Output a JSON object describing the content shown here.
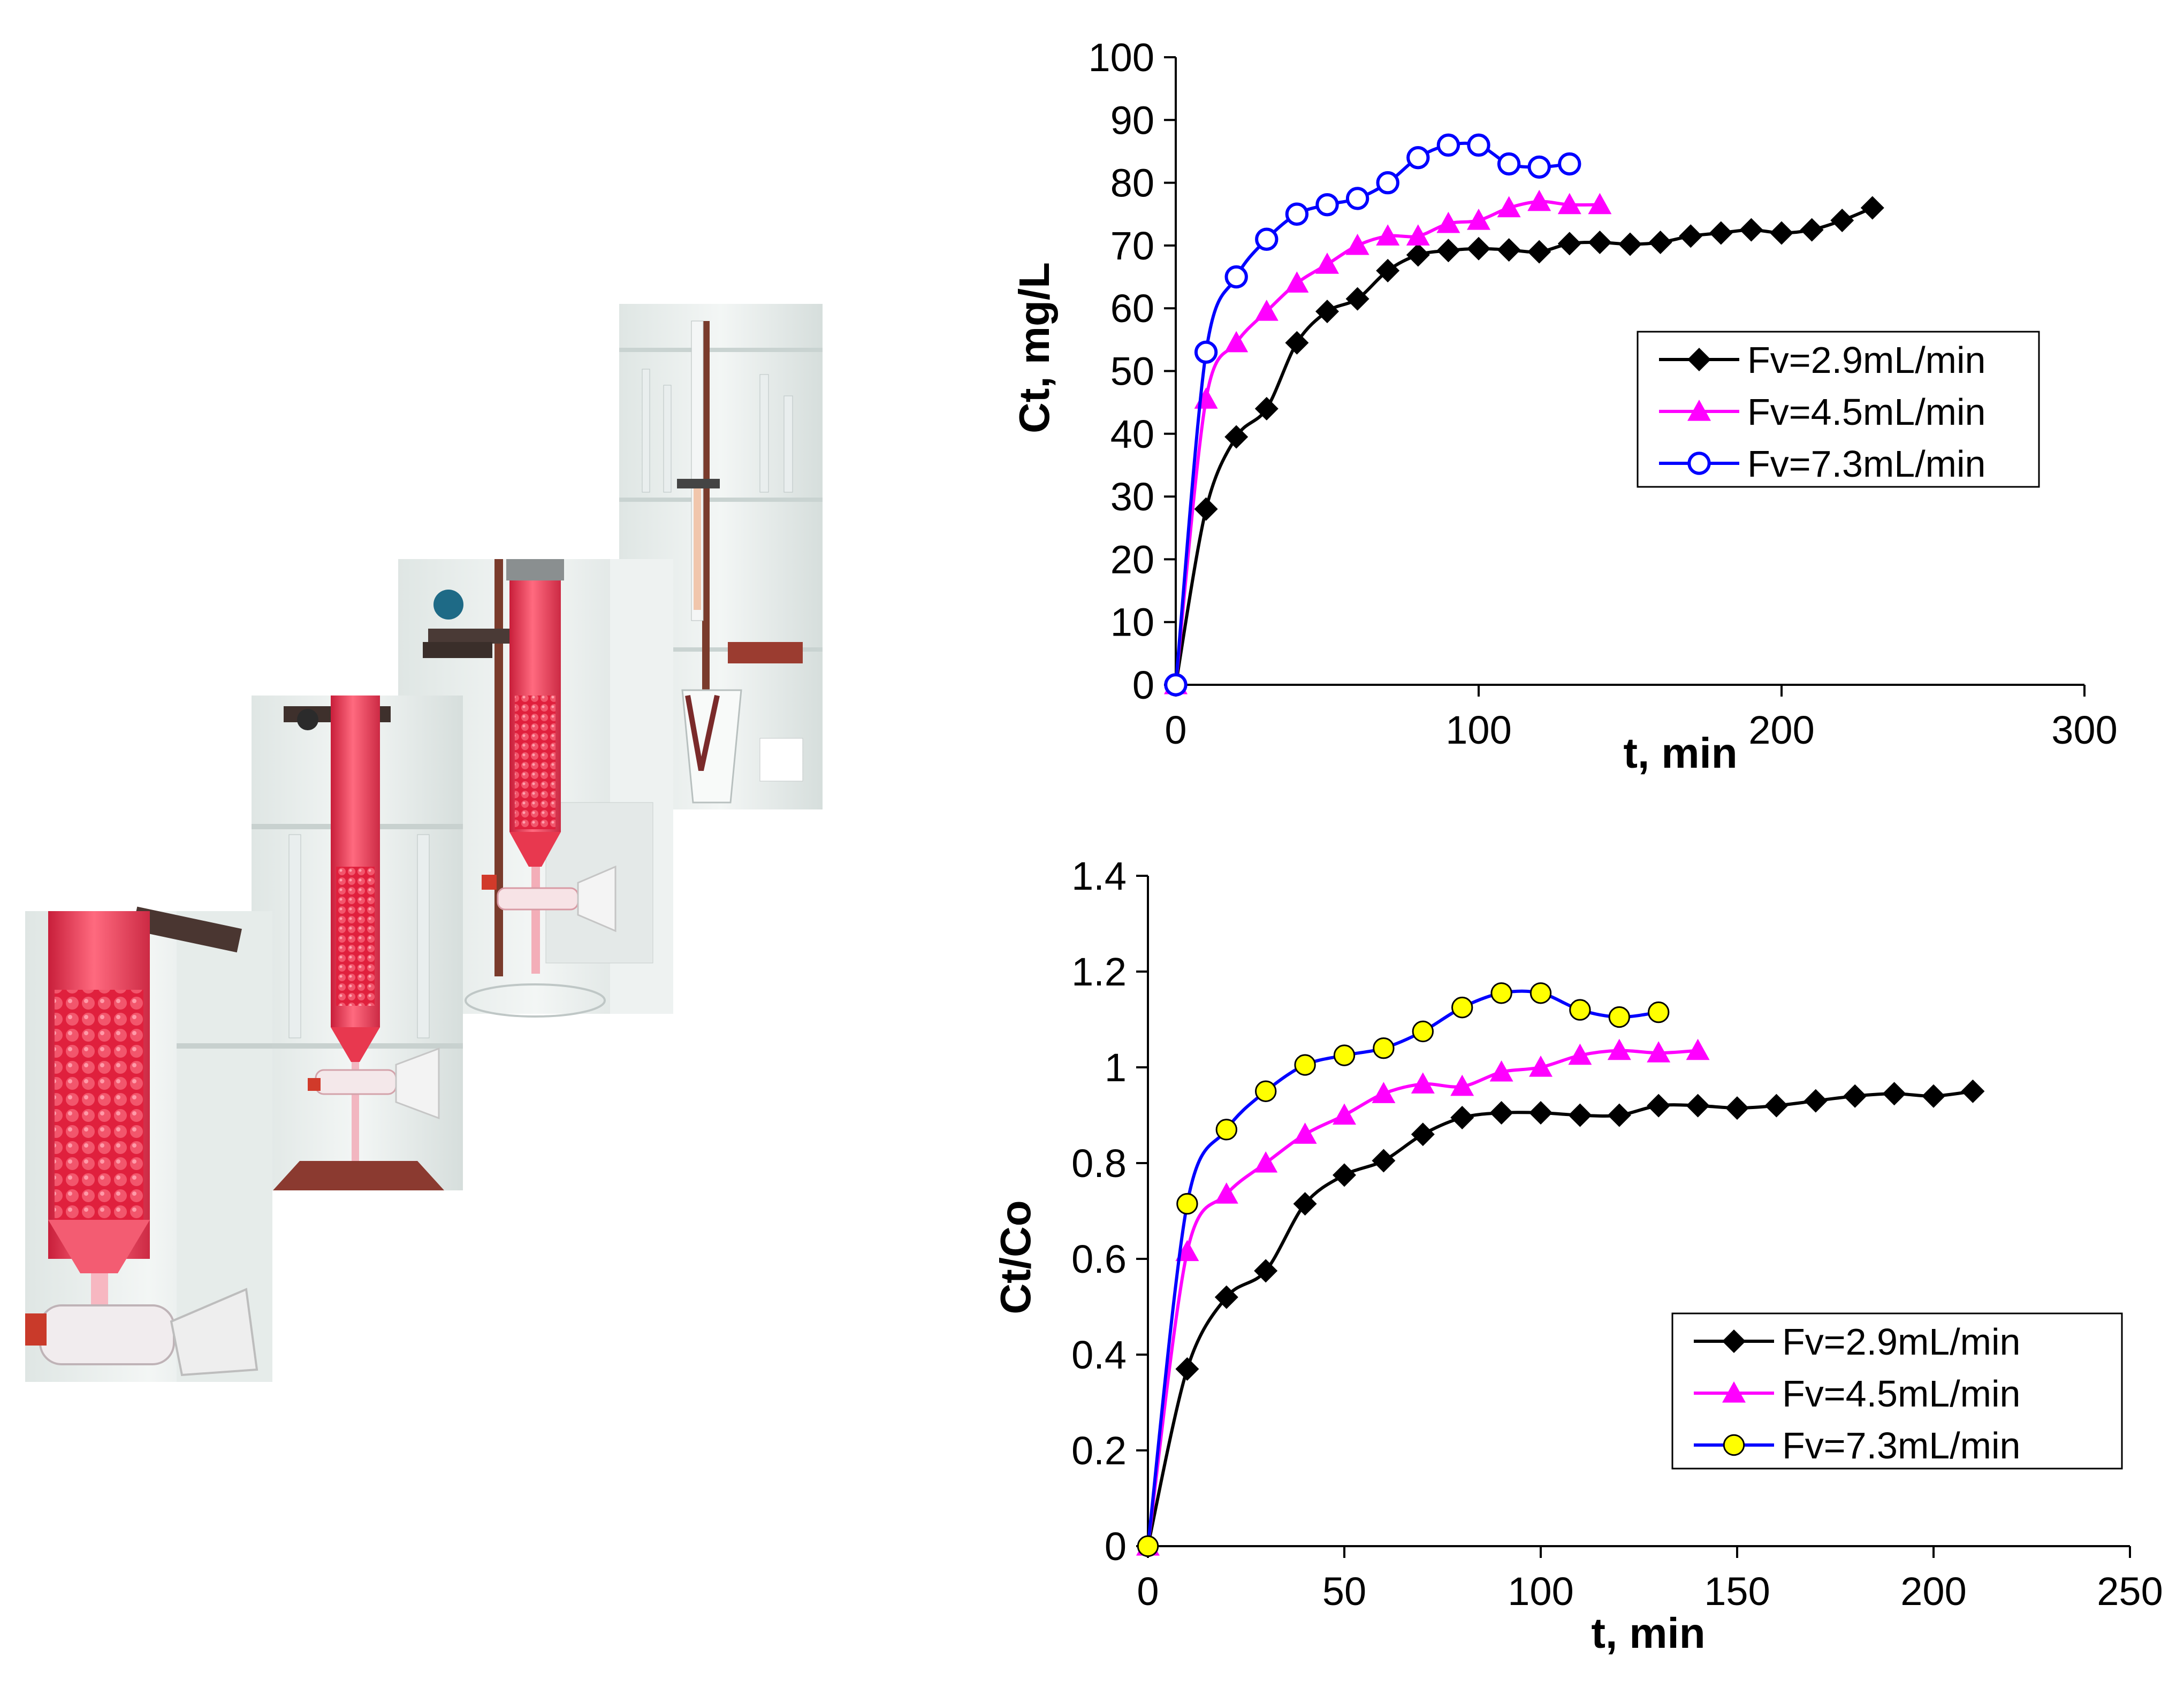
{
  "colors": {
    "black_series": "#000000",
    "magenta_series": "#ff00ff",
    "blue_series": "#0000ff",
    "yellow_marker": "#ffff00",
    "glass_red": "#e8384f",
    "bead_red": "#e21f3b",
    "stand_brown": "#7a3b2c"
  },
  "photos": [
    {
      "name": "column-photo-1"
    },
    {
      "name": "column-photo-2"
    },
    {
      "name": "column-photo-3"
    },
    {
      "name": "column-photo-4"
    }
  ],
  "chart_data": [
    {
      "type": "line",
      "xlabel": "t, min",
      "ylabel": "Ct, mg/L",
      "xlim": [
        0,
        300
      ],
      "ylim": [
        0,
        100
      ],
      "xticks": [
        0,
        100,
        200,
        300
      ],
      "yticks": [
        0,
        10,
        20,
        30,
        40,
        50,
        60,
        70,
        80,
        90,
        100
      ],
      "legend_position": "middle-right",
      "series": [
        {
          "name": "Fv=2.9mL/min",
          "marker": "diamond",
          "color": "#000000",
          "x": [
            0,
            10,
            20,
            30,
            40,
            50,
            60,
            70,
            80,
            90,
            100,
            110,
            120,
            130,
            140,
            150,
            160,
            170,
            180,
            190,
            200,
            210,
            220,
            230
          ],
          "y": [
            0,
            28,
            39.5,
            44,
            54.5,
            59.5,
            61.5,
            66,
            68.5,
            69.2,
            69.5,
            69.3,
            69,
            70.3,
            70.5,
            70.2,
            70.5,
            71.5,
            72,
            72.5,
            72,
            72.5,
            74,
            76
          ]
        },
        {
          "name": "Fv=4.5mL/min",
          "marker": "triangle",
          "color": "#ff00ff",
          "x": [
            0,
            10,
            20,
            30,
            40,
            50,
            60,
            70,
            80,
            90,
            100,
            110,
            120,
            130,
            140
          ],
          "y": [
            0,
            45.5,
            54.5,
            59.5,
            64,
            67,
            70,
            71.5,
            71.5,
            73.5,
            74,
            76,
            77,
            76.5,
            76.5
          ]
        },
        {
          "name": "Fv=7.3mL/min",
          "marker": "circle-open",
          "color": "#0000ff",
          "x": [
            0,
            10,
            20,
            30,
            40,
            50,
            60,
            70,
            80,
            90,
            100,
            110,
            120,
            130
          ],
          "y": [
            0,
            53,
            65,
            71,
            75,
            76.5,
            77.5,
            80,
            84,
            86,
            86,
            83,
            82.5,
            83
          ]
        }
      ]
    },
    {
      "type": "line",
      "xlabel": "t, min",
      "ylabel": "Ct/Co",
      "xlim": [
        0,
        250
      ],
      "ylim": [
        0,
        1.4
      ],
      "xticks": [
        0,
        50,
        100,
        150,
        200,
        250
      ],
      "yticks": [
        0,
        0.2,
        0.4,
        0.6,
        0.8,
        1,
        1.2,
        1.4
      ],
      "legend_position": "lower-right",
      "series": [
        {
          "name": "Fv=2.9mL/min",
          "marker": "diamond",
          "color": "#000000",
          "x": [
            0,
            10,
            20,
            30,
            40,
            50,
            60,
            70,
            80,
            90,
            100,
            110,
            120,
            130,
            140,
            150,
            160,
            170,
            180,
            190,
            200,
            210
          ],
          "y": [
            0,
            0.37,
            0.52,
            0.575,
            0.715,
            0.775,
            0.805,
            0.86,
            0.895,
            0.905,
            0.905,
            0.9,
            0.9,
            0.92,
            0.92,
            0.915,
            0.92,
            0.93,
            0.94,
            0.945,
            0.94,
            0.95
          ]
        },
        {
          "name": "Fv=4.5mL/min",
          "marker": "triangle",
          "color": "#ff00ff",
          "x": [
            0,
            10,
            20,
            30,
            40,
            50,
            60,
            70,
            80,
            90,
            100,
            110,
            120,
            130,
            140
          ],
          "y": [
            0,
            0.615,
            0.735,
            0.8,
            0.86,
            0.9,
            0.945,
            0.965,
            0.96,
            0.99,
            1.0,
            1.025,
            1.035,
            1.03,
            1.035
          ]
        },
        {
          "name": "Fv=7.3mL/min",
          "marker": "circle-yellow",
          "color": "#0000ff",
          "x": [
            0,
            10,
            20,
            30,
            40,
            50,
            60,
            70,
            80,
            90,
            100,
            110,
            120,
            130
          ],
          "y": [
            0,
            0.715,
            0.87,
            0.95,
            1.005,
            1.025,
            1.04,
            1.075,
            1.125,
            1.155,
            1.155,
            1.12,
            1.105,
            1.115
          ]
        }
      ]
    }
  ]
}
